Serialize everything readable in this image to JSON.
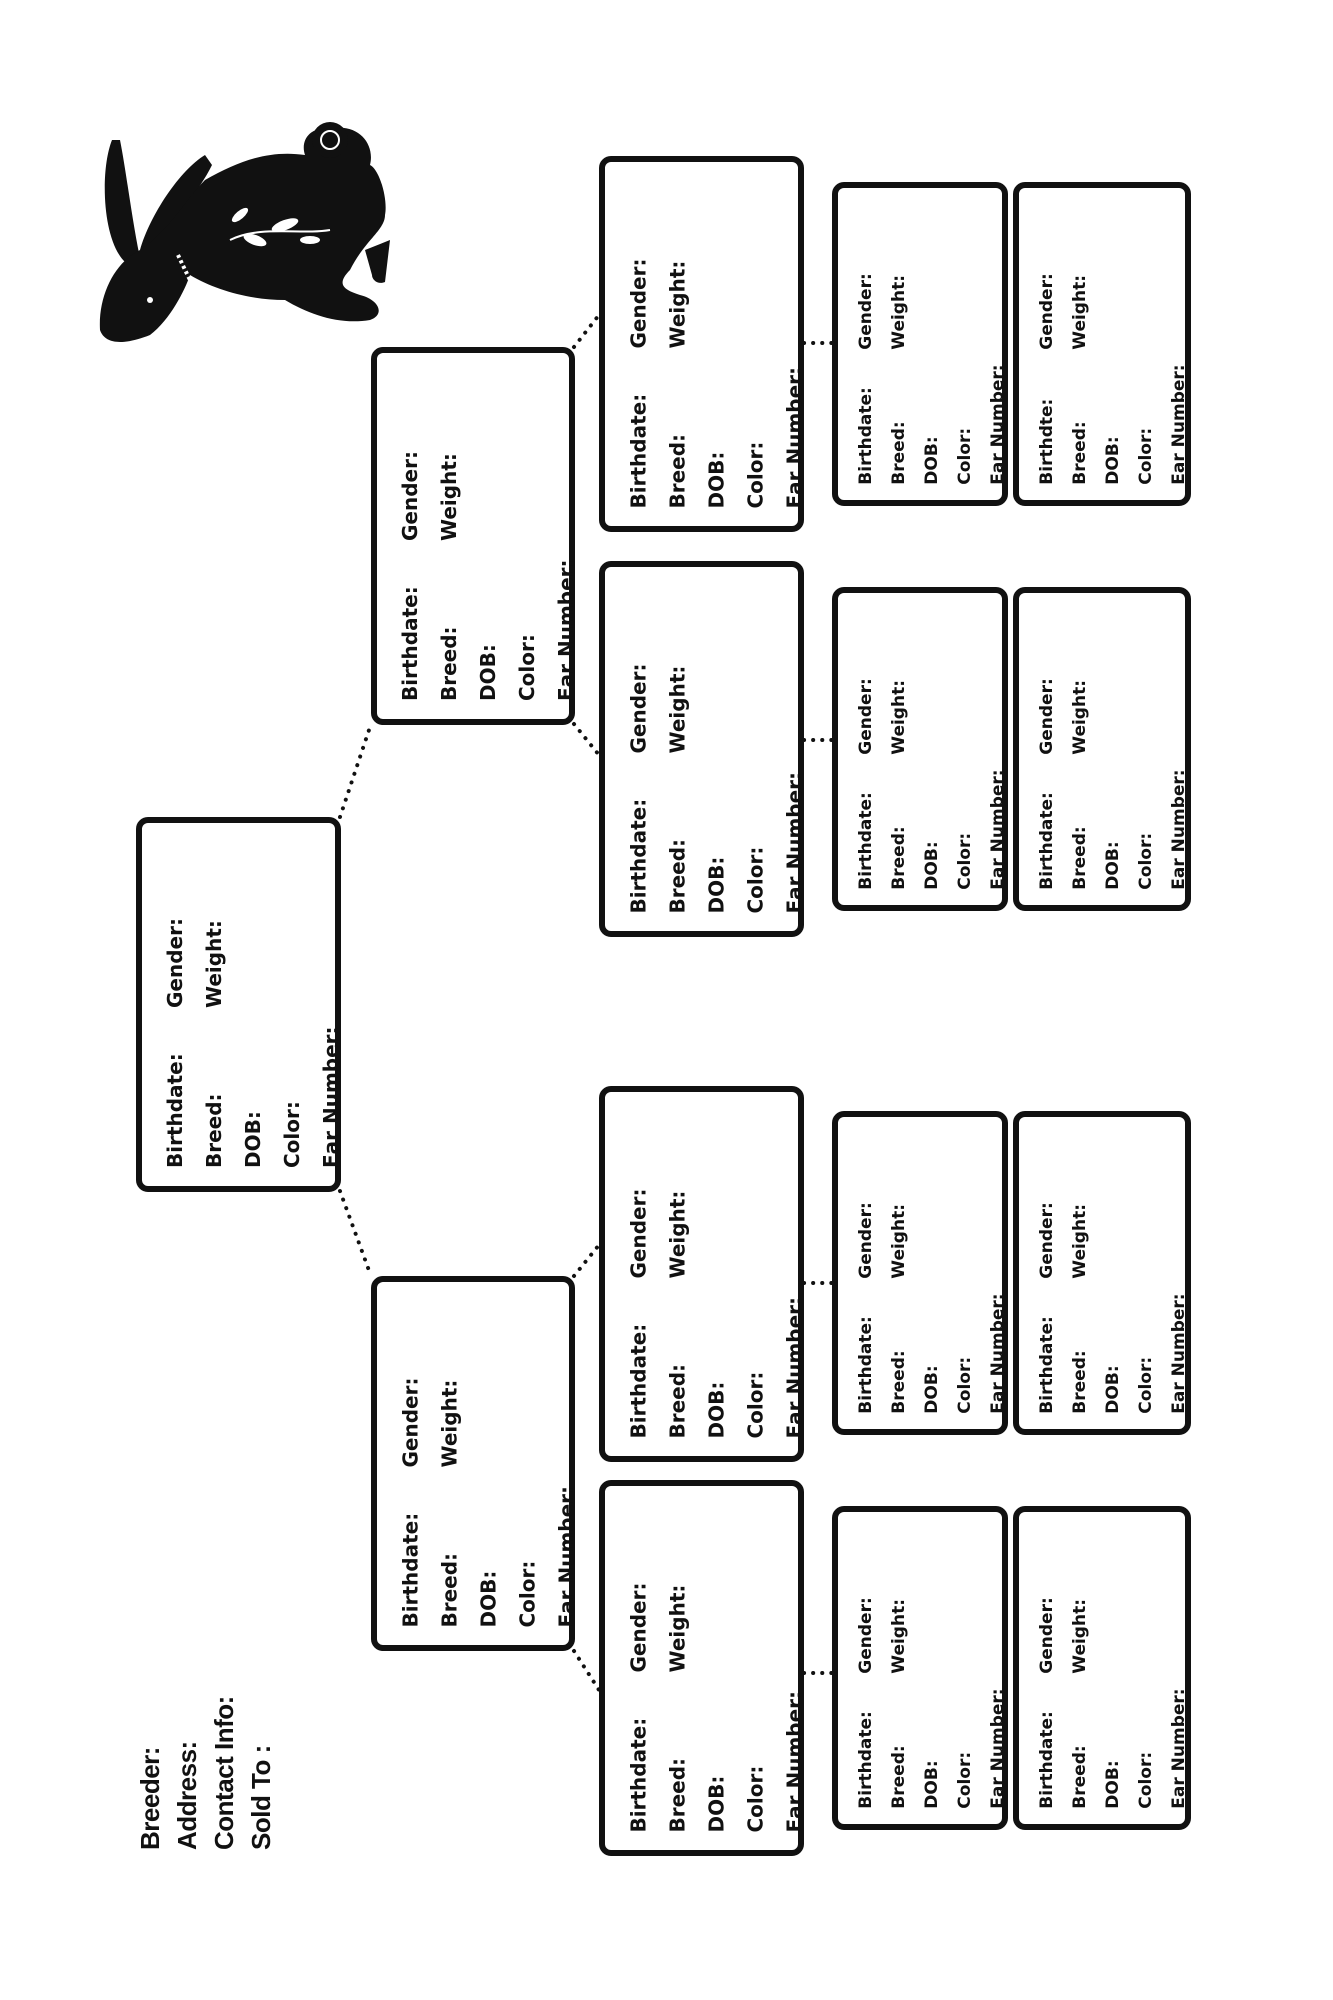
{
  "header": {
    "breeder_label": "Breeder:",
    "address_label": "Address:",
    "contact_label": "Contact Info:",
    "sold_to_label": "Sold To :"
  },
  "logo": {
    "icon": "rabbit-silhouette-icon"
  },
  "pedigree": {
    "boxes": [
      {
        "generation": "subject",
        "fields": [
          "Birthdate:",
          "Breed:",
          "DOB:",
          "Color:",
          "Ear Number:"
        ],
        "side_fields": [
          "Gender:",
          "Weight:"
        ]
      },
      {
        "generation": "parent",
        "fields": [
          "Birthdate:",
          "Breed:",
          "DOB:",
          "Color:",
          "Ear Number:"
        ],
        "side_fields": [
          "Gender:",
          "Weight:"
        ]
      },
      {
        "generation": "parent",
        "fields": [
          "Birthdate:",
          "Breed:",
          "DOB:",
          "Color:",
          "Ear Number:"
        ],
        "side_fields": [
          "Gender:",
          "Weight:"
        ]
      },
      {
        "generation": "grandparent",
        "fields": [
          "Birthdate:",
          "Breed:",
          "DOB:",
          "Color:",
          "Ear Number:"
        ],
        "side_fields": [
          "Gender:",
          "Weight:"
        ]
      },
      {
        "generation": "grandparent",
        "fields": [
          "Birthdate:",
          "Breed:",
          "DOB:",
          "Color:",
          "Ear Number:"
        ],
        "side_fields": [
          "Gender:",
          "Weight:"
        ]
      },
      {
        "generation": "grandparent",
        "fields": [
          "Birthdate:",
          "Breed:",
          "DOB:",
          "Color:",
          "Ear Number:"
        ],
        "side_fields": [
          "Gender:",
          "Weight:"
        ]
      },
      {
        "generation": "grandparent",
        "fields": [
          "Birthdate:",
          "Breed:",
          "DOB:",
          "Color:",
          "Ear Number:"
        ],
        "side_fields": [
          "Gender:",
          "Weight:"
        ]
      },
      {
        "generation": "great-grandparent",
        "fields": [
          "Birthdate:",
          "Breed:",
          "DOB:",
          "Color:",
          "Ear Number:"
        ],
        "side_fields": [
          "Gender:",
          "Weight:"
        ]
      },
      {
        "generation": "great-grandparent",
        "fields": [
          "Birthdte:",
          "Breed:",
          "DOB:",
          "Color:",
          "Ear Number:"
        ],
        "side_fields": [
          "Gender:",
          "Weight:"
        ]
      },
      {
        "generation": "great-grandparent",
        "fields": [
          "Birthdate:",
          "Breed:",
          "DOB:",
          "Color:",
          "Ear Number:"
        ],
        "side_fields": [
          "Gender:",
          "Weight:"
        ]
      },
      {
        "generation": "great-grandparent",
        "fields": [
          "Birthdate:",
          "Breed:",
          "DOB:",
          "Color:",
          "Ear Number:"
        ],
        "side_fields": [
          "Gender:",
          "Weight:"
        ]
      },
      {
        "generation": "great-grandparent",
        "fields": [
          "Birthdate:",
          "Breed:",
          "DOB:",
          "Color:",
          "Ear Number:"
        ],
        "side_fields": [
          "Gender:",
          "Weight:"
        ]
      },
      {
        "generation": "great-grandparent",
        "fields": [
          "Birthdate:",
          "Breed:",
          "DOB:",
          "Color:",
          "Ear Number:"
        ],
        "side_fields": [
          "Gender:",
          "Weight:"
        ]
      },
      {
        "generation": "great-grandparent",
        "fields": [
          "Birthdate:",
          "Breed:",
          "DOB:",
          "Color:",
          "Ear Number:"
        ],
        "side_fields": [
          "Gender:",
          "Weight:"
        ]
      },
      {
        "generation": "great-grandparent",
        "fields": [
          "Birthdate:",
          "Breed:",
          "DOB:",
          "Color:",
          "Ear Number:"
        ],
        "side_fields": [
          "Gender:",
          "Weight:"
        ]
      }
    ]
  }
}
